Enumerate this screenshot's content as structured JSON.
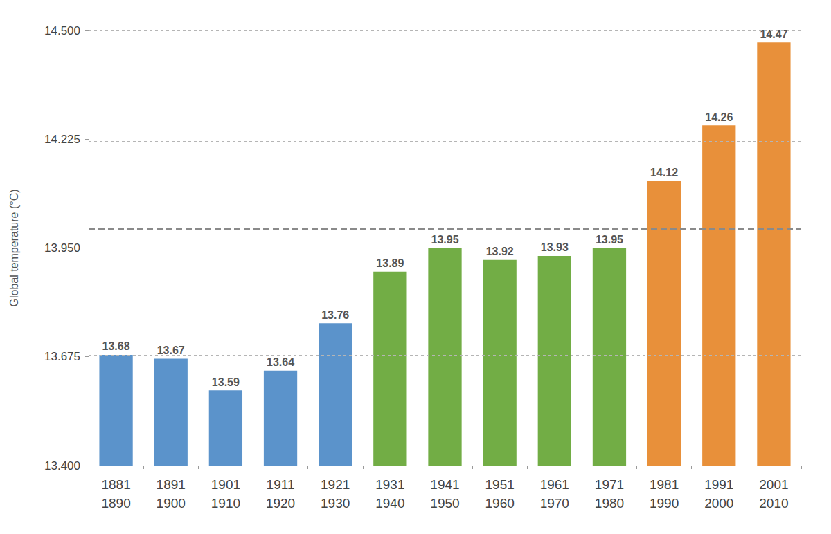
{
  "chart_data": {
    "type": "bar",
    "y_label": "Global temperature (°C)",
    "categories": [
      "1881\n1890",
      "1891\n1900",
      "1901\n1910",
      "1911\n1920",
      "1921\n1930",
      "1931\n1940",
      "1941\n1950",
      "1951\n1960",
      "1961\n1970",
      "1971\n1980",
      "1981\n1990",
      "1991\n2000",
      "2001\n2010"
    ],
    "values": [
      13.68,
      13.67,
      13.59,
      13.64,
      13.76,
      13.89,
      13.95,
      13.92,
      13.93,
      13.95,
      14.12,
      14.26,
      14.47
    ],
    "colors": [
      "#5b93cb",
      "#5b93cb",
      "#5b93cb",
      "#5b93cb",
      "#5b93cb",
      "#72ad45",
      "#72ad45",
      "#72ad45",
      "#72ad45",
      "#72ad45",
      "#e8903a",
      "#e8903a",
      "#e8903a"
    ],
    "ylim": [
      13.4,
      14.5
    ],
    "yticks": [
      {
        "value": 13.4,
        "label": "13.400"
      },
      {
        "value": 13.675,
        "label": "13.675"
      },
      {
        "value": 13.95,
        "label": "13.950"
      },
      {
        "value": 14.225,
        "label": "14.225"
      },
      {
        "value": 14.5,
        "label": "14.500"
      }
    ],
    "grid": true,
    "data_labels": true,
    "reference_line": 14.0
  }
}
